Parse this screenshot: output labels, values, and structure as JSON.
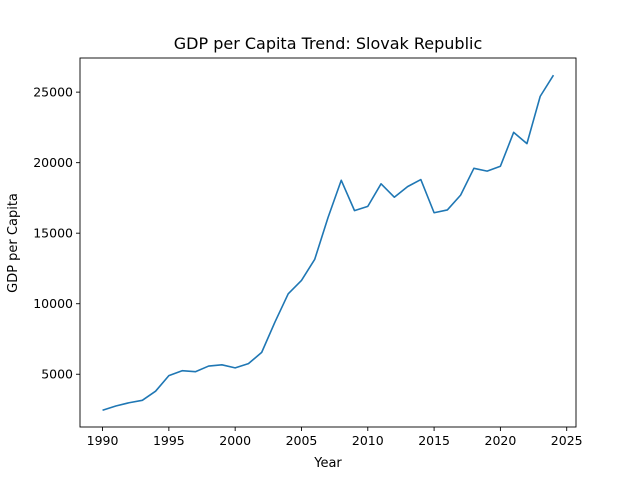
{
  "chart_data": {
    "type": "line",
    "title": "GDP per Capita Trend: Slovak Republic",
    "xlabel": "Year",
    "ylabel": "GDP per Capita",
    "xlim": [
      1988.3,
      2025.7
    ],
    "ylim": [
      1260,
      27420
    ],
    "xticks": [
      1990,
      1995,
      2000,
      2005,
      2010,
      2015,
      2020,
      2025
    ],
    "yticks": [
      5000,
      10000,
      15000,
      20000,
      25000
    ],
    "grid": false,
    "legend": "none",
    "series": [
      {
        "color": "#1f77b4",
        "x": [
          1990,
          1991,
          1992,
          1993,
          1994,
          1995,
          1996,
          1997,
          1998,
          1999,
          2000,
          2001,
          2002,
          2003,
          2004,
          2005,
          2006,
          2007,
          2008,
          2009,
          2010,
          2011,
          2012,
          2013,
          2014,
          2015,
          2016,
          2017,
          2018,
          2019,
          2020,
          2021,
          2022,
          2023,
          2024
        ],
        "values": [
          2450,
          2750,
          2980,
          3150,
          3800,
          4900,
          5250,
          5180,
          5580,
          5670,
          5450,
          5750,
          6550,
          8700,
          10700,
          11650,
          13150,
          16100,
          18750,
          16600,
          16900,
          18500,
          17550,
          18300,
          18800,
          16450,
          16650,
          17700,
          19600,
          19400,
          19750,
          22150,
          21350,
          24700,
          26200
        ]
      }
    ]
  }
}
